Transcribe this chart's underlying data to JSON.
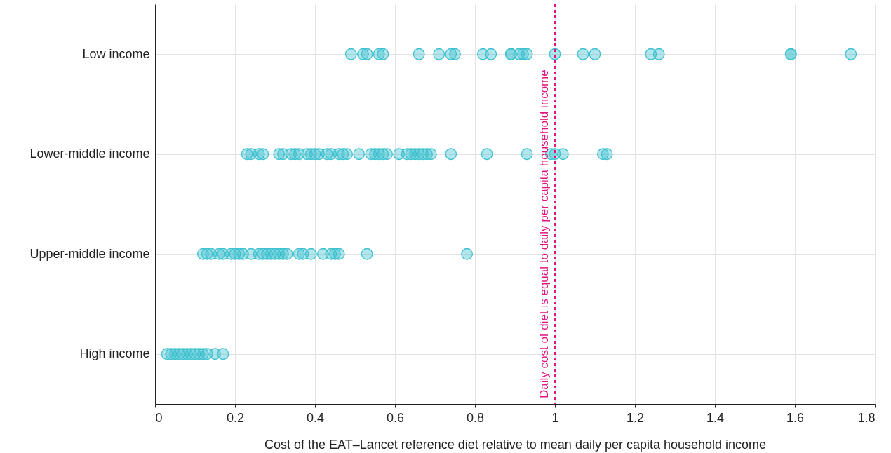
{
  "chart_data": {
    "type": "scatter",
    "orientation": "horizontal",
    "xlabel": "Cost of the EAT–Lancet reference diet relative to mean daily per capita household income",
    "categories": [
      "Low income",
      "Lower-middle income",
      "Upper-middle income",
      "High income"
    ],
    "series": [
      {
        "color": "#3ec1cf",
        "x": [
          "Low income",
          "Low income",
          "Low income",
          "Low income",
          "Low income",
          "Low income",
          "Low income",
          "Low income",
          "Low income",
          "Low income",
          "Low income",
          "Low income",
          "Low income",
          "Low income",
          "Low income",
          "Low income",
          "Low income",
          "Low income",
          "Low income",
          "Low income",
          "Low income",
          "Low income",
          "Low income",
          "Low income",
          "Lower-middle income",
          "Lower-middle income",
          "Lower-middle income",
          "Lower-middle income",
          "Lower-middle income",
          "Lower-middle income",
          "Lower-middle income",
          "Lower-middle income",
          "Lower-middle income",
          "Lower-middle income",
          "Lower-middle income",
          "Lower-middle income",
          "Lower-middle income",
          "Lower-middle income",
          "Lower-middle income",
          "Lower-middle income",
          "Lower-middle income",
          "Lower-middle income",
          "Lower-middle income",
          "Lower-middle income",
          "Lower-middle income",
          "Lower-middle income",
          "Lower-middle income",
          "Lower-middle income",
          "Lower-middle income",
          "Lower-middle income",
          "Lower-middle income",
          "Lower-middle income",
          "Lower-middle income",
          "Lower-middle income",
          "Lower-middle income",
          "Lower-middle income",
          "Lower-middle income",
          "Lower-middle income",
          "Lower-middle income",
          "Lower-middle income",
          "Lower-middle income",
          "Lower-middle income",
          "Lower-middle income",
          "Lower-middle income",
          "Upper-middle income",
          "Upper-middle income",
          "Upper-middle income",
          "Upper-middle income",
          "Upper-middle income",
          "Upper-middle income",
          "Upper-middle income",
          "Upper-middle income",
          "Upper-middle income",
          "Upper-middle income",
          "Upper-middle income",
          "Upper-middle income",
          "Upper-middle income",
          "Upper-middle income",
          "Upper-middle income",
          "Upper-middle income",
          "Upper-middle income",
          "Upper-middle income",
          "Upper-middle income",
          "Upper-middle income",
          "Upper-middle income",
          "Upper-middle income",
          "Upper-middle income",
          "Upper-middle income",
          "Upper-middle income",
          "Upper-middle income",
          "Upper-middle income",
          "High income",
          "High income",
          "High income",
          "High income",
          "High income",
          "High income",
          "High income",
          "High income",
          "High income",
          "High income",
          "High income",
          "High income",
          "High income"
        ],
        "values": [
          0.49,
          0.52,
          0.53,
          0.56,
          0.57,
          0.66,
          0.71,
          0.74,
          0.75,
          0.82,
          0.84,
          0.89,
          0.89,
          0.91,
          0.92,
          0.93,
          1.0,
          1.07,
          1.1,
          1.24,
          1.26,
          1.59,
          1.59,
          1.74,
          0.23,
          0.24,
          0.26,
          0.27,
          0.31,
          0.32,
          0.34,
          0.35,
          0.36,
          0.38,
          0.39,
          0.4,
          0.41,
          0.43,
          0.44,
          0.46,
          0.47,
          0.48,
          0.51,
          0.54,
          0.55,
          0.56,
          0.57,
          0.58,
          0.61,
          0.63,
          0.64,
          0.65,
          0.66,
          0.67,
          0.68,
          0.69,
          0.74,
          0.83,
          0.93,
          0.99,
          1.0,
          1.02,
          1.12,
          1.13,
          0.12,
          0.13,
          0.14,
          0.16,
          0.17,
          0.19,
          0.2,
          0.21,
          0.22,
          0.24,
          0.26,
          0.27,
          0.28,
          0.29,
          0.3,
          0.31,
          0.32,
          0.33,
          0.36,
          0.37,
          0.39,
          0.42,
          0.44,
          0.45,
          0.46,
          0.53,
          0.78,
          0.03,
          0.04,
          0.05,
          0.06,
          0.07,
          0.08,
          0.09,
          0.1,
          0.11,
          0.12,
          0.13,
          0.15,
          0.17
        ]
      }
    ],
    "xlim": [
      0,
      1.8
    ],
    "xticks": [
      0,
      0.2,
      0.4,
      0.6,
      0.8,
      1,
      1.2,
      1.4,
      1.6,
      1.8
    ],
    "ref_lines": [
      {
        "axis": "x",
        "value": 1,
        "label": "Daily cost of diet is equal to daily per capita household income",
        "color": "#e0157f",
        "line_style": "dotted"
      }
    ],
    "grid": true
  }
}
